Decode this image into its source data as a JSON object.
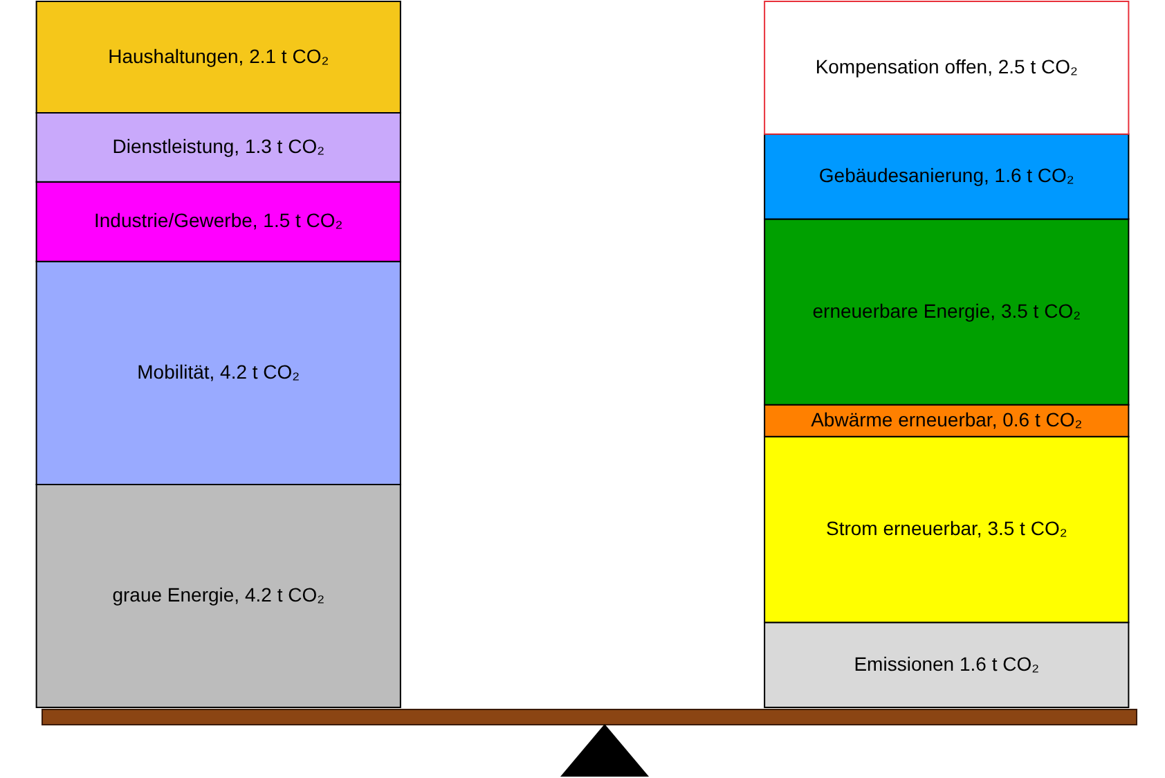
{
  "chart_data": {
    "type": "bar",
    "stacked": true,
    "categories": [
      null,
      null
    ],
    "series": [
      {
        "color": "#bcbcbc",
        "values": [
          4.2,
          null
        ],
        "value_labels": [
          "graue Energie, 4.2 t CO₂",
          null
        ]
      },
      {
        "color": "#99aaff",
        "values": [
          4.2,
          null
        ],
        "value_labels": [
          "Mobilität, 4.2 t CO₂",
          null
        ]
      },
      {
        "color": "#ff00ff",
        "values": [
          1.5,
          null
        ],
        "value_labels": [
          "Industrie/Gewerbe, 1.5 t CO₂",
          null
        ]
      },
      {
        "color": "#c9a9fb",
        "values": [
          1.3,
          null
        ],
        "value_labels": [
          "Dienstleistung, 1.3 t CO₂",
          null
        ]
      },
      {
        "color": "#f5c71a",
        "values": [
          2.1,
          null
        ],
        "value_labels": [
          "Haushaltungen, 2.1 t CO₂",
          null
        ]
      },
      {
        "color": "#d9d9d9",
        "values": [
          null,
          1.6
        ],
        "value_labels": [
          null,
          "Emissionen 1.6 t CO₂"
        ]
      },
      {
        "color": "#ffff00",
        "values": [
          null,
          3.5
        ],
        "value_labels": [
          null,
          "Strom erneuerbar, 3.5 t CO₂"
        ]
      },
      {
        "color": "#ff8000",
        "values": [
          null,
          0.6
        ],
        "value_labels": [
          null,
          "Abwärme erneuerbar, 0.6 t CO₂"
        ]
      },
      {
        "color": "#00a000",
        "values": [
          null,
          3.5
        ],
        "value_labels": [
          null,
          "erneuerbare Energie, 3.5 t CO₂"
        ]
      },
      {
        "color": "#0099ff",
        "values": [
          null,
          1.6
        ],
        "value_labels": [
          null,
          "Gebäudesanierung, 1.6 t CO₂"
        ]
      },
      {
        "color": "#ffffff",
        "line_style": "dashed",
        "values": [
          null,
          2.5
        ],
        "value_labels": [
          null,
          "Kompensation offen, 2.5 t CO₂"
        ]
      }
    ]
  }
}
